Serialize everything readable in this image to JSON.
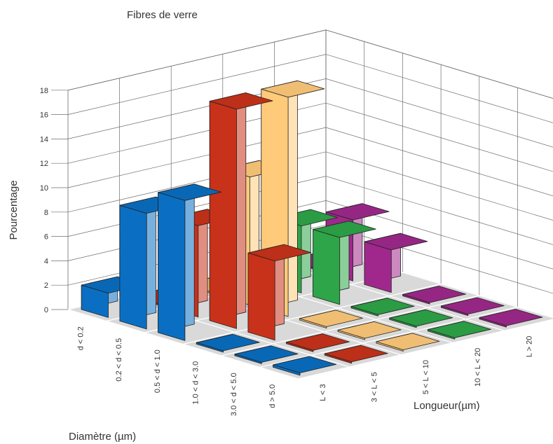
{
  "chart_data": {
    "type": "bar3d",
    "title": "Fibres de verre",
    "zlabel": "Pourcentage",
    "xlabel": "Diamètre (µm)",
    "ylabel": "Longueur(µm)",
    "z_ticks": [
      "0",
      "2",
      "4",
      "6",
      "8",
      "10",
      "12",
      "14",
      "16",
      "18"
    ],
    "zlim": [
      0,
      18
    ],
    "diameter_categories": [
      "d < 0.2",
      "0.2 < d < 0.5",
      "0.5 < d < 1.0",
      "1.0 < d < 3.0",
      "3.0 < d < 5.0",
      "d > 5.0"
    ],
    "length_categories": [
      "L < 3",
      "3 < L < 5",
      "5 < L < 10",
      "10 < L < 20",
      "L > 20"
    ],
    "series": [
      {
        "name": "L < 3",
        "color": "#0a6fc2",
        "values": [
          2,
          9.5,
          11.5,
          0,
          0,
          0.2
        ]
      },
      {
        "name": "3 < L < 5",
        "color": "#c8321a",
        "values": [
          0,
          7.5,
          18,
          6.5,
          0,
          0
        ]
      },
      {
        "name": "5 < L < 10",
        "color": "#ffca7a",
        "values": [
          0,
          10.5,
          18,
          0,
          0,
          0
        ]
      },
      {
        "name": "10 < L < 20",
        "color": "#2ea548",
        "values": [
          0,
          5.5,
          5.5,
          0,
          0,
          0
        ]
      },
      {
        "name": "L > 20",
        "color": "#a0288c",
        "values": [
          0,
          5,
          3.5,
          0,
          0,
          0
        ]
      }
    ]
  }
}
